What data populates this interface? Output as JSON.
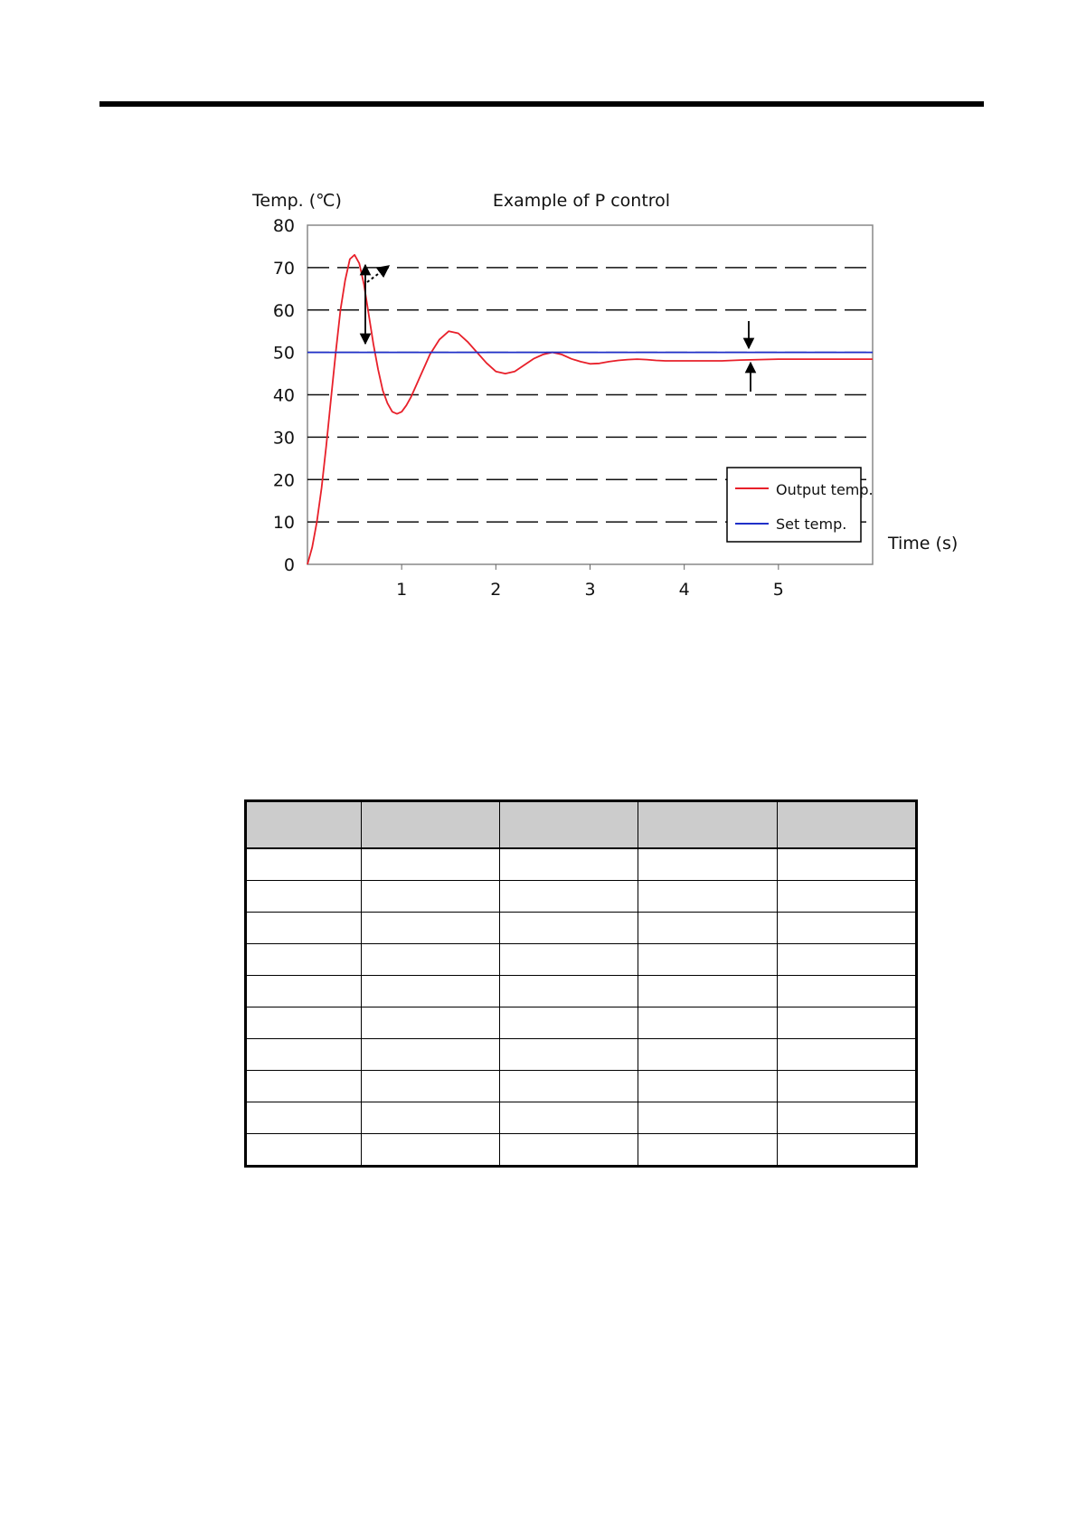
{
  "chart_data": {
    "type": "line",
    "title": "Example of P control",
    "ylabel": "Temp. (℃)",
    "xlabel": "Time (s)",
    "ylim": [
      0,
      80
    ],
    "xlim": [
      0,
      6
    ],
    "yticks": [
      0,
      10,
      20,
      30,
      40,
      50,
      60,
      70,
      80
    ],
    "xticks": [
      1,
      2,
      3,
      4,
      5
    ],
    "grid": "horizontal dashed",
    "legend_position": "bottom-right",
    "series": [
      {
        "name": "Output temp.",
        "color": "#e8202a",
        "x": [
          0,
          0.05,
          0.1,
          0.15,
          0.2,
          0.25,
          0.3,
          0.35,
          0.4,
          0.45,
          0.5,
          0.55,
          0.6,
          0.65,
          0.7,
          0.75,
          0.8,
          0.85,
          0.9,
          0.95,
          1.0,
          1.05,
          1.1,
          1.15,
          1.2,
          1.25,
          1.3,
          1.4,
          1.5,
          1.6,
          1.7,
          1.8,
          1.9,
          2.0,
          2.1,
          2.2,
          2.3,
          2.4,
          2.5,
          2.6,
          2.7,
          2.8,
          2.9,
          3.0,
          3.1,
          3.2,
          3.3,
          3.4,
          3.5,
          3.6,
          3.7,
          3.8,
          3.9,
          4.0,
          4.2,
          4.4,
          4.6,
          4.8,
          5.0,
          5.2,
          5.4,
          5.6,
          5.8,
          6.0
        ],
        "y": [
          0,
          4,
          10,
          18,
          28,
          39,
          50,
          60,
          67,
          72,
          73,
          71,
          66,
          59,
          52,
          46,
          41,
          38,
          36,
          35.5,
          36,
          37.5,
          39.5,
          42,
          44.5,
          47,
          49.5,
          53,
          55,
          54.5,
          52.5,
          50,
          47.5,
          45.5,
          45,
          45.5,
          47,
          48.5,
          49.5,
          50,
          49.5,
          48.5,
          47.8,
          47.3,
          47.4,
          47.8,
          48.1,
          48.3,
          48.4,
          48.3,
          48.1,
          48,
          48,
          48,
          48,
          48,
          48.2,
          48.3,
          48.4,
          48.4,
          48.4,
          48.4,
          48.4,
          48.4
        ]
      },
      {
        "name": "Set temp.",
        "color": "#2030c8",
        "x": [
          0,
          6
        ],
        "y": [
          50,
          50
        ]
      }
    ]
  },
  "table": {
    "columns": [
      "",
      "",
      "",
      "",
      ""
    ],
    "rows": [
      [
        "",
        "",
        "",
        "",
        ""
      ],
      [
        "",
        "",
        "",
        "",
        ""
      ],
      [
        "",
        "",
        "",
        "",
        ""
      ],
      [
        "",
        "",
        "",
        "",
        ""
      ],
      [
        "",
        "",
        "",
        "",
        ""
      ],
      [
        "",
        "",
        "",
        "",
        ""
      ],
      [
        "",
        "",
        "",
        "",
        ""
      ],
      [
        "",
        "",
        "",
        "",
        ""
      ],
      [
        "",
        "",
        "",
        "",
        ""
      ],
      [
        "",
        "",
        "",
        "",
        ""
      ]
    ]
  }
}
